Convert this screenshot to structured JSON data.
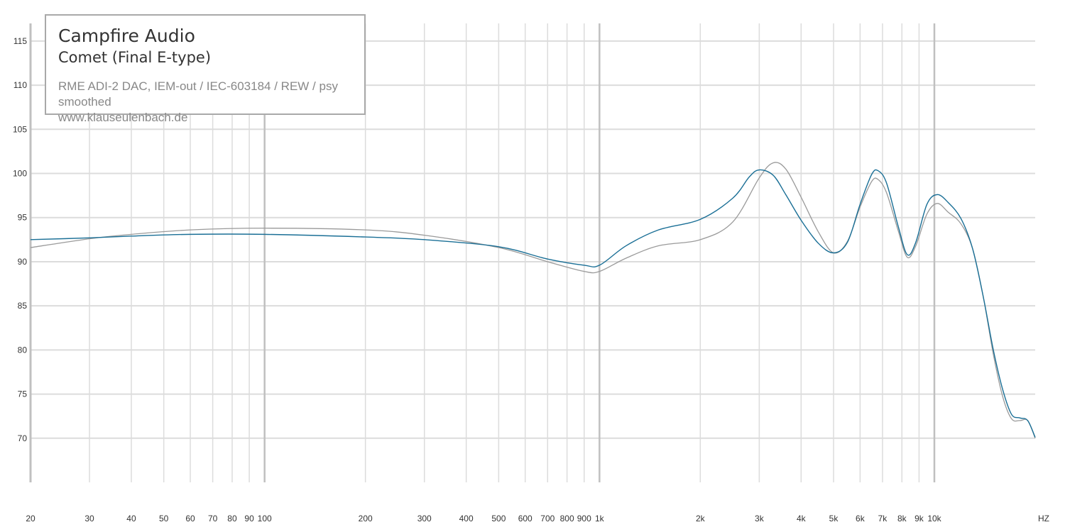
{
  "header": {
    "brand": "Campfire Audio",
    "model": "Comet (Final E-type)",
    "measurement": "RME ADI-2 DAC, IEM-out / IEC-603184 / REW / psy smoothed",
    "website": "www.klauseulenbach.de"
  },
  "colors": {
    "series_main": "#1a6f96",
    "series_compare": "#9a9a9a",
    "grid": "#dcdcdc",
    "grid_major": "#c0c0c0"
  },
  "chart_data": {
    "type": "line",
    "xscale": "log",
    "xlim": [
      20,
      20000
    ],
    "ylim": [
      65,
      117
    ],
    "xlabel": "HZ",
    "ylabel": "",
    "grid": true,
    "x_ticks": [
      {
        "v": 20,
        "label": "20"
      },
      {
        "v": 30,
        "label": "30"
      },
      {
        "v": 40,
        "label": "40"
      },
      {
        "v": 50,
        "label": "50"
      },
      {
        "v": 60,
        "label": "60"
      },
      {
        "v": 70,
        "label": "70"
      },
      {
        "v": 80,
        "label": "80"
      },
      {
        "v": 90,
        "label": "90"
      },
      {
        "v": 100,
        "label": "100"
      },
      {
        "v": 200,
        "label": "200"
      },
      {
        "v": 300,
        "label": "300"
      },
      {
        "v": 400,
        "label": "400"
      },
      {
        "v": 500,
        "label": "500"
      },
      {
        "v": 600,
        "label": "600"
      },
      {
        "v": 700,
        "label": "700"
      },
      {
        "v": 800,
        "label": "800"
      },
      {
        "v": 900,
        "label": "900"
      },
      {
        "v": 1000,
        "label": "1k"
      },
      {
        "v": 2000,
        "label": "2k"
      },
      {
        "v": 3000,
        "label": "3k"
      },
      {
        "v": 4000,
        "label": "4k"
      },
      {
        "v": 5000,
        "label": "5k"
      },
      {
        "v": 6000,
        "label": "6k"
      },
      {
        "v": 7000,
        "label": "7k"
      },
      {
        "v": 8000,
        "label": "8k"
      },
      {
        "v": 9000,
        "label": "9k"
      },
      {
        "v": 10000,
        "label": "10k"
      }
    ],
    "y_ticks": [
      70,
      75,
      80,
      85,
      90,
      95,
      100,
      105,
      110,
      115
    ],
    "series": [
      {
        "color": "#9a9a9a",
        "x": [
          20,
          30,
          40,
          60,
          100,
          200,
          300,
          500,
          700,
          900,
          1000,
          1200,
          1500,
          2000,
          2500,
          3000,
          3300,
          3600,
          4000,
          4500,
          5000,
          5500,
          6000,
          6500,
          6800,
          7200,
          7800,
          8300,
          8800,
          9500,
          10200,
          11000,
          12000,
          13000,
          14000,
          15000,
          16000,
          17000,
          18000,
          19000,
          20000
        ],
        "y": [
          91.6,
          92.6,
          93.1,
          93.6,
          93.8,
          93.6,
          93.0,
          91.6,
          90.0,
          88.9,
          88.9,
          90.4,
          91.8,
          92.5,
          94.5,
          99.5,
          101.2,
          100.5,
          97.3,
          93.4,
          91.0,
          92.3,
          96.2,
          99.1,
          99.3,
          97.8,
          93.5,
          90.5,
          91.8,
          95.4,
          96.6,
          95.6,
          94.3,
          91.5,
          86.0,
          79.5,
          74.7,
          72.2,
          72.0,
          72.0,
          70.0
        ]
      },
      {
        "color": "#1a6f96",
        "x": [
          20,
          30,
          40,
          60,
          100,
          200,
          300,
          500,
          700,
          900,
          1000,
          1200,
          1500,
          2000,
          2500,
          2800,
          3000,
          3300,
          3600,
          4000,
          4500,
          5000,
          5500,
          6000,
          6500,
          6800,
          7200,
          7800,
          8300,
          8800,
          9500,
          10200,
          11000,
          12000,
          13000,
          14000,
          15000,
          16000,
          17000,
          18000,
          19000,
          20000
        ],
        "y": [
          92.5,
          92.7,
          92.9,
          93.1,
          93.1,
          92.8,
          92.5,
          91.7,
          90.3,
          89.6,
          89.6,
          91.8,
          93.6,
          94.8,
          97.2,
          99.6,
          100.4,
          99.8,
          97.6,
          94.7,
          92.1,
          91.0,
          92.2,
          96.5,
          99.9,
          100.3,
          98.9,
          94.0,
          90.8,
          92.2,
          96.5,
          97.6,
          96.7,
          94.9,
          91.5,
          86.0,
          80.0,
          75.5,
          72.7,
          72.3,
          72.0,
          70.1
        ]
      }
    ]
  }
}
